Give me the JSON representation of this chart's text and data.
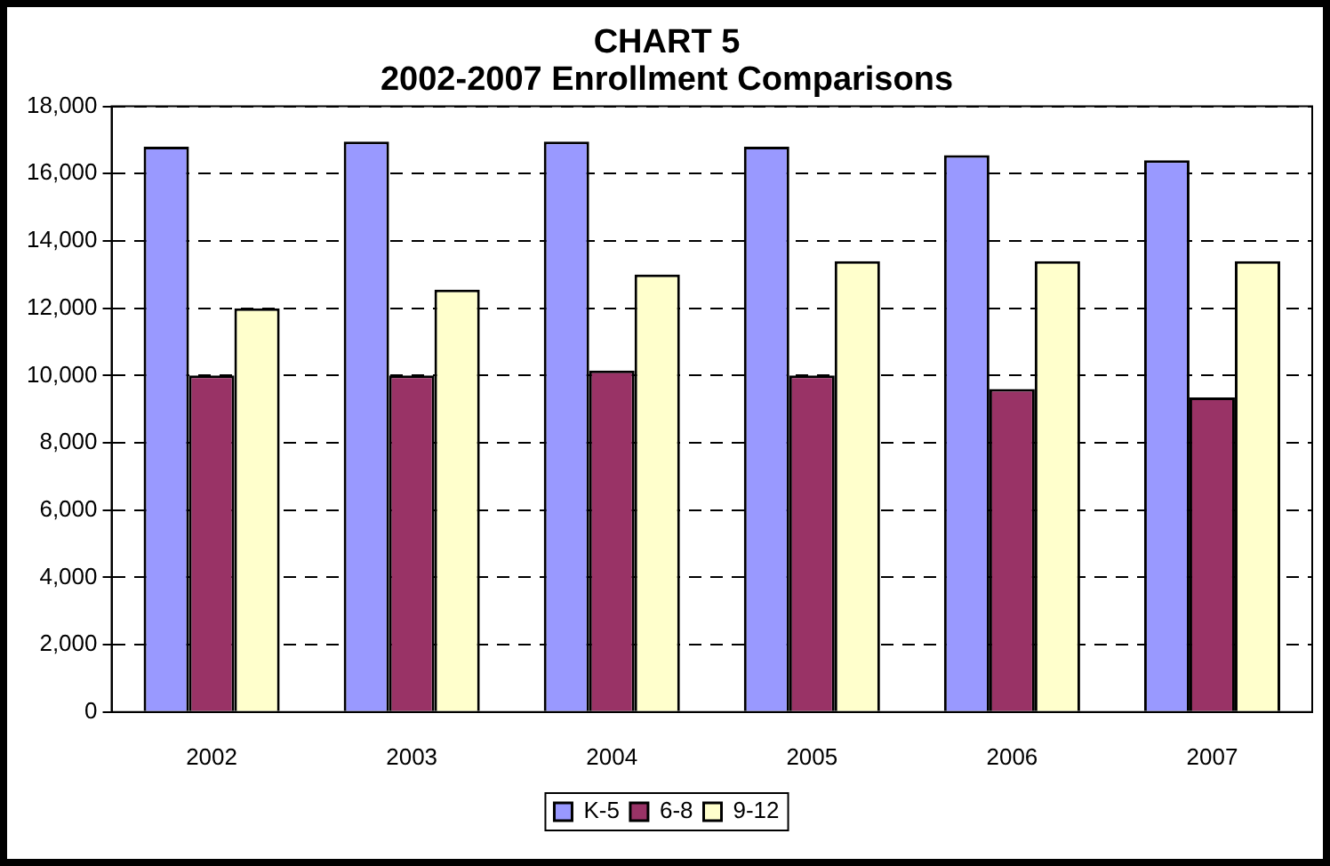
{
  "chart_data": {
    "type": "bar",
    "title": [
      "CHART 5",
      "2002-2007 Enrollment Comparisons"
    ],
    "categories": [
      "2002",
      "2003",
      "2004",
      "2005",
      "2006",
      "2007"
    ],
    "series": [
      {
        "name": "K-5",
        "color": "#9999ff",
        "values": [
          16800,
          16950,
          16950,
          16800,
          16550,
          16400
        ]
      },
      {
        "name": "6-8",
        "color": "#993366",
        "values": [
          10000,
          10000,
          10150,
          10000,
          9600,
          9350
        ]
      },
      {
        "name": "9-12",
        "color": "#ffffcc",
        "values": [
          12000,
          12550,
          13000,
          13400,
          13400,
          13400
        ]
      }
    ],
    "ylim": [
      0,
      18000
    ],
    "yticks": [
      0,
      {
        "value": 2000,
        "label": "2,000"
      },
      {
        "value": 4000,
        "label": "4,000"
      },
      {
        "value": 6000,
        "label": "6,000"
      },
      {
        "value": 8000,
        "label": "8,000"
      },
      {
        "value": 10000,
        "label": "10,000"
      },
      {
        "value": 12000,
        "label": "12,000"
      },
      {
        "value": 14000,
        "label": "14,000"
      },
      {
        "value": 16000,
        "label": "16,000"
      },
      {
        "value": 18000,
        "label": "18,000"
      }
    ],
    "grid": "y",
    "legend": "bottom"
  }
}
